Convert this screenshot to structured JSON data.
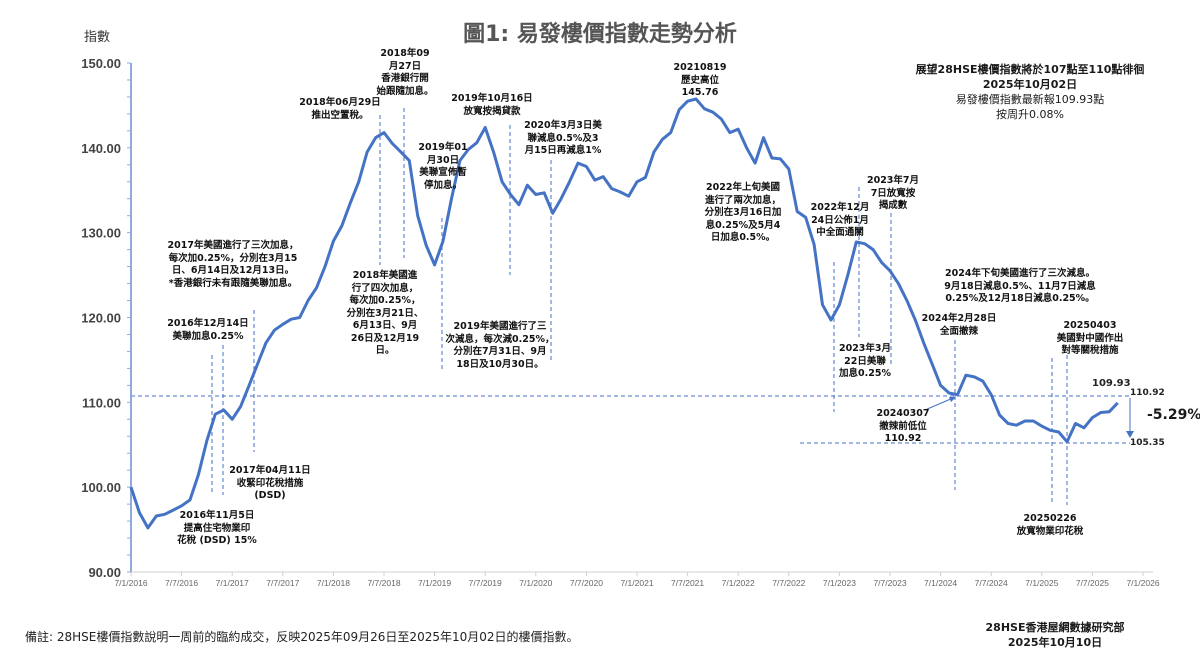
{
  "title": "圖1: 易發樓價指數走勢分析",
  "y_axis_label": "指數",
  "info_box": {
    "line1": "展望28HSE樓價指數將於107點至110點徘徊",
    "line2": "2025年10月02日",
    "line3": "易發樓價指數最新報109.93點",
    "line4": "按周升0.08%"
  },
  "annotations": {
    "a2018_09": "2018年09\n月27日\n香港銀行開\n始跟隨加息。",
    "a2018_06": "2018年06月29日\n推出空置稅。",
    "a2019_10": "2019年10月16日\n放寬按揭貸款",
    "a2020_03": "2020年3月3日美\n聯減息0.5%及3\n月15日再減息1%",
    "a2019_01": "2019年01\n月30日\n美聯宣佈暫\n停加息。",
    "a20210819": "20210819\n歷史高位\n145.76",
    "a2017": "2017年美國進行了三次加息，\n每次加0.25%，分別在3月15\n日、6月14日及12月13日。\n*香港銀行未有跟隨美聯加息。",
    "a2018": "2018年美國進\n行了四次加息，\n每次加0.25%，\n分別在3月21日、\n6月13日、9月\n26日及12月19\n日。",
    "a2019": "2019年美國進行了三\n次減息，每次減0.25%，\n分別在7月31日、9月\n18日及10月30日。",
    "a2016_12": "2016年12月14日\n美聯加息0.25%",
    "a2016_11": "2016年11月5日\n提高住宅物業印\n花稅 (DSD) 15%",
    "a2017_04": "2017年04月11日\n收緊印花稅措施\n(DSD)",
    "a2022": "2022年上旬美國\n進行了兩次加息，\n分別在3月16日加\n息0.25%及5月4\n日加息0.5%。",
    "a2022_12": "2022年12月\n24日公佈1月\n中全面通關",
    "a2023_07": "2023年7月\n7日放寬按\n揭成數",
    "a2023_03": "2023年3月\n22日美聯\n加息0.25%",
    "a2024h2": "2024年下旬美國進行了三次減息。\n9月18日減息0.5%、11月7日減息\n0.25%及12月18日減息0.25%。",
    "a2024_02": "2024年2月28日\n全面撤辣",
    "a20250403": "20250403\n美國對中國作出\n對等關稅措施",
    "a20240307": "20240307\n撤辣前低位\n110.92",
    "a20250226": "20250226\n放寬物業印花稅"
  },
  "markers": {
    "latest": "109.93",
    "ref_high": "110.92",
    "ref_low": "105.35",
    "change": "-5.29%"
  },
  "footer": {
    "note": "備註: 28HSE樓價指數說明一周前的臨約成交，反映2025年09月26日至2025年10月02日的樓價指數。",
    "source": "28HSE香港屋網數據研究部",
    "date": "2025年10月10日"
  },
  "colors": {
    "line": "#4472c4",
    "axis": "#8faadc",
    "dash": "#4472c4"
  },
  "chart_data": {
    "type": "line",
    "title": "圖1: 易發樓價指數走勢分析",
    "ylabel": "指數",
    "xlabel": "",
    "ylim": [
      90,
      150
    ],
    "yticks": [
      "90.00",
      "100.00",
      "110.00",
      "120.00",
      "130.00",
      "140.00",
      "150.00"
    ],
    "xlim": [
      "2016-01-07",
      "2026-01-07"
    ],
    "xticks": [
      "7/1/2016",
      "7/7/2016",
      "7/1/2017",
      "7/7/2017",
      "7/1/2018",
      "7/7/2018",
      "7/1/2019",
      "7/7/2019",
      "7/1/2020",
      "7/7/2020",
      "7/1/2021",
      "7/7/2021",
      "7/1/2022",
      "7/7/2022",
      "7/1/2023",
      "7/7/2023",
      "7/1/2024",
      "7/7/2024",
      "7/1/2025",
      "7/7/2025",
      "7/1/2026"
    ],
    "grid": false,
    "reference_lines": [
      110.92,
      105.35
    ],
    "series": [
      {
        "x": [
          "2016-01",
          "2016-02",
          "2016-03",
          "2016-04",
          "2016-05",
          "2016-06",
          "2016-07",
          "2016-08",
          "2016-09",
          "2016-10",
          "2016-11",
          "2016-12",
          "2017-01",
          "2017-02",
          "2017-03",
          "2017-04",
          "2017-05",
          "2017-06",
          "2017-07",
          "2017-08",
          "2017-09",
          "2017-10",
          "2017-11",
          "2017-12",
          "2018-01",
          "2018-02",
          "2018-03",
          "2018-04",
          "2018-05",
          "2018-06",
          "2018-07",
          "2018-08",
          "2018-09",
          "2018-10",
          "2018-11",
          "2018-12",
          "2019-01",
          "2019-02",
          "2019-03",
          "2019-04",
          "2019-05",
          "2019-06",
          "2019-07",
          "2019-08",
          "2019-09",
          "2019-10",
          "2019-11",
          "2019-12",
          "2020-01",
          "2020-02",
          "2020-03",
          "2020-04",
          "2020-05",
          "2020-06",
          "2020-07",
          "2020-08",
          "2020-09",
          "2020-10",
          "2020-11",
          "2020-12",
          "2021-01",
          "2021-02",
          "2021-03",
          "2021-04",
          "2021-05",
          "2021-06",
          "2021-07",
          "2021-08",
          "2021-09",
          "2021-10",
          "2021-11",
          "2021-12",
          "2022-01",
          "2022-02",
          "2022-03",
          "2022-04",
          "2022-05",
          "2022-06",
          "2022-07",
          "2022-08",
          "2022-09",
          "2022-10",
          "2022-11",
          "2022-12",
          "2023-01",
          "2023-02",
          "2023-03",
          "2023-04",
          "2023-05",
          "2023-06",
          "2023-07",
          "2023-08",
          "2023-09",
          "2023-10",
          "2023-11",
          "2023-12",
          "2024-01",
          "2024-02",
          "2024-03",
          "2024-04",
          "2024-05",
          "2024-06",
          "2024-07",
          "2024-08",
          "2024-09",
          "2024-10",
          "2024-11",
          "2024-12",
          "2025-01",
          "2025-02",
          "2025-03",
          "2025-04",
          "2025-05",
          "2025-06",
          "2025-07",
          "2025-08",
          "2025-09",
          "2025-10"
        ],
        "y": [
          100.0,
          97.0,
          95.2,
          96.6,
          96.8,
          97.3,
          97.8,
          98.5,
          101.5,
          105.5,
          108.6,
          109.1,
          108.0,
          109.5,
          112.0,
          114.5,
          117.0,
          118.5,
          119.2,
          119.8,
          120.0,
          122.0,
          123.5,
          126.0,
          129.0,
          130.8,
          133.5,
          136.0,
          139.5,
          141.2,
          141.8,
          140.5,
          139.5,
          138.5,
          132.0,
          128.5,
          126.2,
          129.0,
          134.0,
          138.5,
          139.8,
          140.6,
          142.4,
          139.5,
          136.0,
          134.5,
          133.3,
          135.6,
          134.5,
          134.7,
          132.3,
          134.0,
          136.0,
          138.2,
          137.8,
          136.2,
          136.6,
          135.2,
          134.8,
          134.3,
          136.0,
          136.5,
          139.5,
          141.0,
          141.8,
          144.5,
          145.5,
          145.76,
          144.6,
          144.2,
          143.4,
          141.8,
          142.2,
          140.0,
          138.2,
          141.2,
          138.8,
          138.7,
          137.5,
          132.5,
          131.8,
          128.6,
          121.5,
          119.7,
          121.5,
          125.0,
          128.9,
          128.7,
          128.0,
          126.5,
          125.5,
          124.0,
          122.0,
          119.7,
          117.0,
          114.5,
          112.0,
          111.1,
          110.9,
          113.2,
          113.0,
          112.5,
          110.9,
          108.5,
          107.5,
          107.3,
          107.8,
          107.8,
          107.2,
          106.7,
          106.5,
          105.35,
          107.5,
          107.0,
          108.2,
          108.8,
          108.9,
          109.93
        ]
      }
    ]
  }
}
